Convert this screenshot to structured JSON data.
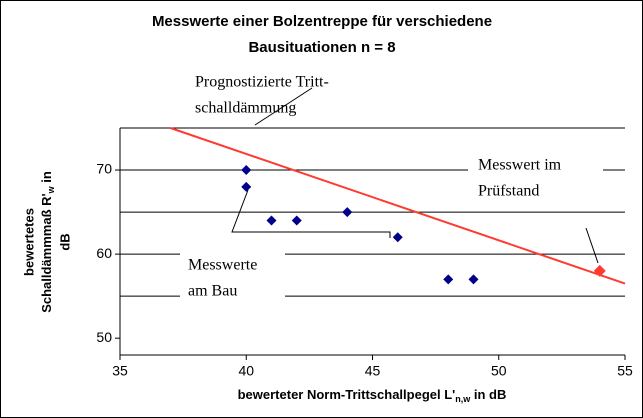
{
  "chart_data": {
    "type": "scatter",
    "title": [
      "Messwerte einer Bolzentreppe für verschiedene",
      "Bausituationen n = 8"
    ],
    "x_label": {
      "main": "bewerteter Norm-Trittschallpegel L'",
      "sub": "n,w",
      "tail": " in dB"
    },
    "y_label": {
      "line1": "bewertetes",
      "main": "Schalldämmmaß R'",
      "sub": "w",
      "tail": " in",
      "line3": "dB"
    },
    "series": [
      {
        "name": "Messwerte am Bau",
        "color": "#00008b",
        "x": [
          40,
          40,
          41,
          42,
          44,
          46,
          48,
          49
        ],
        "values": [
          70,
          68,
          64,
          64,
          65,
          62,
          57,
          57
        ]
      },
      {
        "name": "Messwert im Prüfstand",
        "color": "#ff3b30",
        "x": [
          54
        ],
        "values": [
          58
        ]
      }
    ],
    "line": {
      "color": "#ff3b30",
      "x": [
        37,
        55
      ],
      "values": [
        75,
        56.5
      ]
    },
    "annotations": [
      [
        "Prognostizierte Tritt-",
        "schalldämmung"
      ],
      [
        "Messwert im",
        "Prüfstand"
      ],
      [
        "Messwerte",
        "am Bau"
      ]
    ],
    "xlim": [
      35,
      55
    ],
    "xticks": [
      35,
      40,
      45,
      50,
      55
    ],
    "ylim": [
      48,
      75
    ],
    "yticks": [
      50,
      60,
      70
    ],
    "grid_lines": [
      55,
      60,
      65,
      70,
      75
    ]
  }
}
